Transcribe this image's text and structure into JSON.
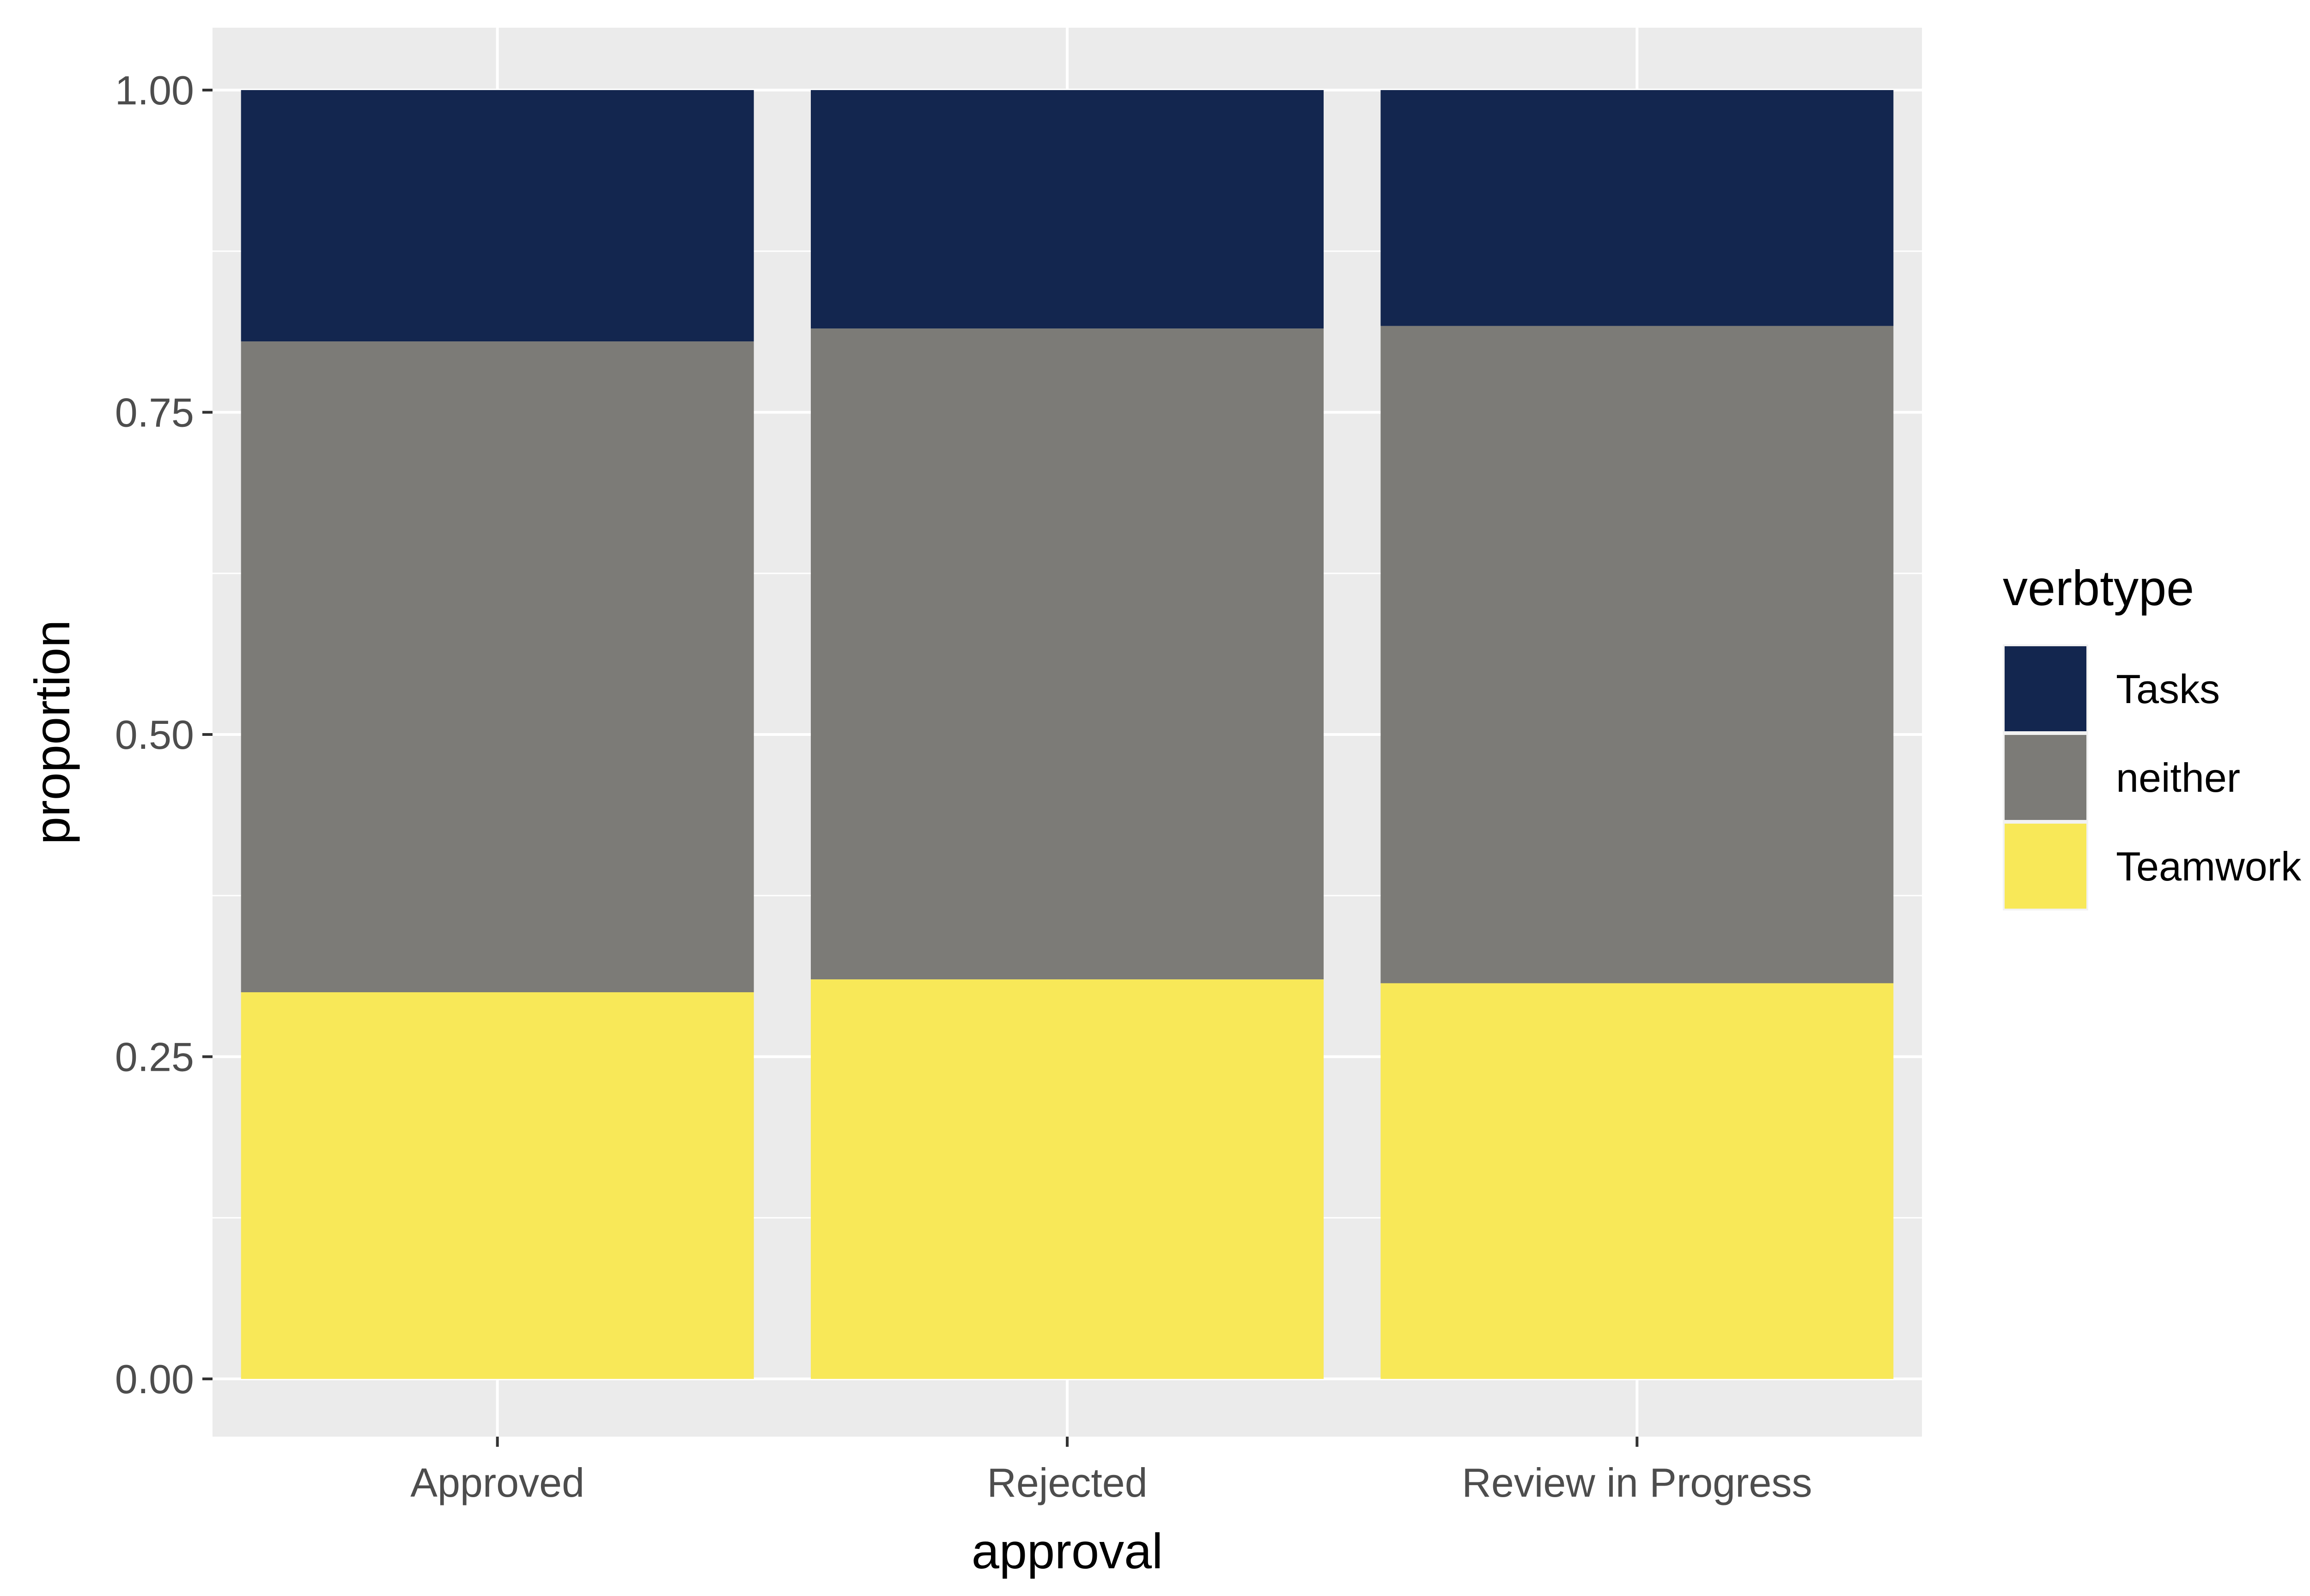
{
  "chart_data": {
    "type": "bar",
    "stacked": true,
    "categories": [
      "Approved",
      "Rejected",
      "Review in Progress"
    ],
    "series": [
      {
        "name": "Teamwork",
        "color": "#F8E858",
        "values": [
          0.3,
          0.31,
          0.307
        ]
      },
      {
        "name": "neither",
        "color": "#7C7B77",
        "values": [
          0.505,
          0.505,
          0.51
        ]
      },
      {
        "name": "Tasks",
        "color": "#13264F",
        "values": [
          0.195,
          0.185,
          0.183
        ]
      }
    ],
    "legend": {
      "title": "verbtype",
      "position": "right",
      "order": [
        "Tasks",
        "neither",
        "Teamwork"
      ]
    },
    "xlabel": "approval",
    "ylabel": "proportion",
    "ylim": [
      0,
      1
    ],
    "yticks": [
      "0.00",
      "0.25",
      "0.50",
      "0.75",
      "1.00"
    ],
    "ytick_values": [
      0,
      0.25,
      0.5,
      0.75,
      1.0
    ],
    "grid": true,
    "panel_background": "#EBEBEB"
  }
}
